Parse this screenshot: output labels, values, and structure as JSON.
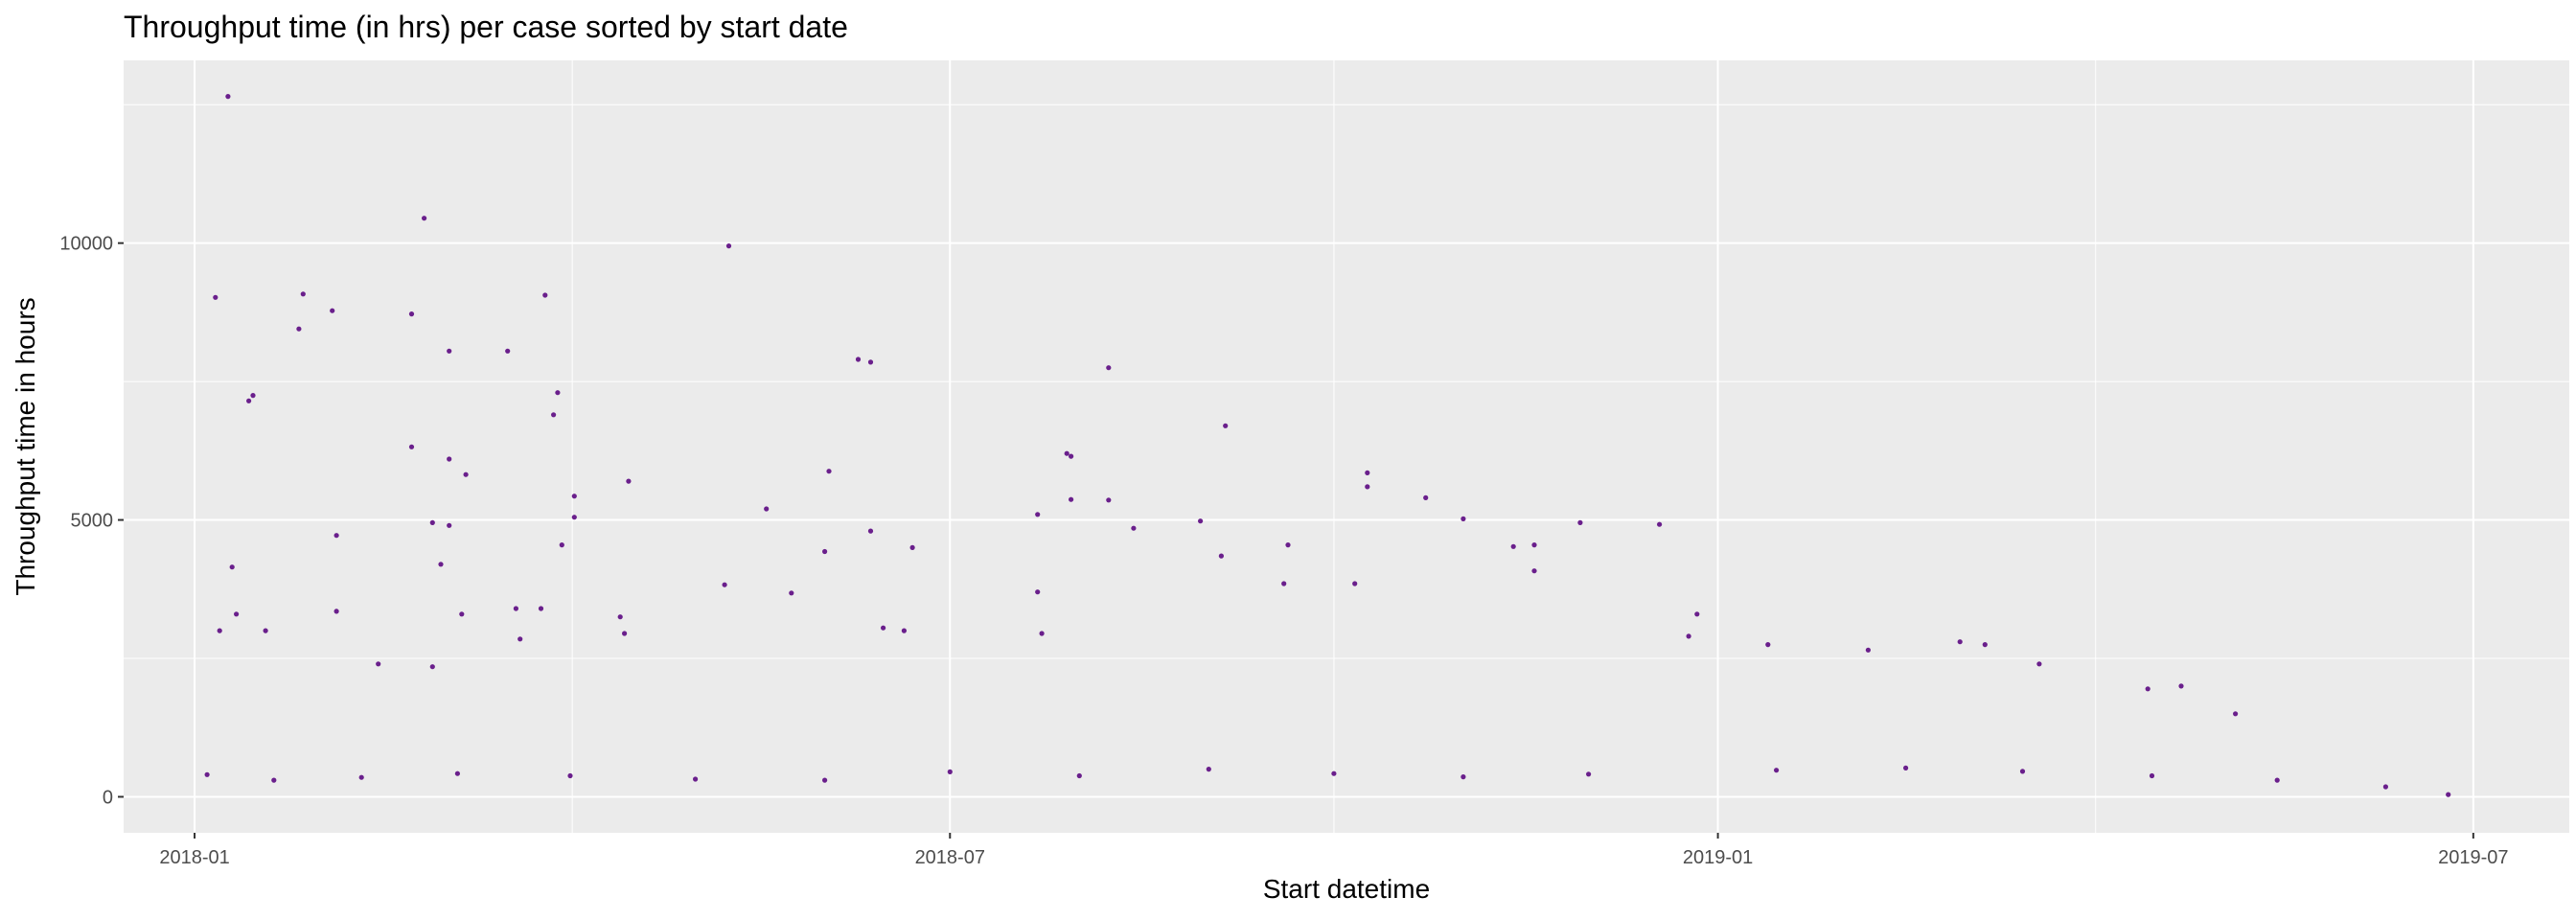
{
  "chart_data": {
    "type": "scatter",
    "title": "Throughput time (in hrs) per case sorted by start date",
    "xlabel": "Start datetime",
    "ylabel": "Throughput time in hours",
    "x_ticks": [
      "2018-01",
      "2018-07",
      "2019-01",
      "2019-07"
    ],
    "y_ticks": [
      "0",
      "5000",
      "10000"
    ],
    "xlim": [
      "2017-12-15",
      "2019-07-24"
    ],
    "ylim": [
      -650,
      13300
    ],
    "grid": true,
    "point_color": "#6A1F8C",
    "panel_background": "#EBEBEB",
    "series": [
      {
        "description": "approximate extracted points (outliers and representative dense cluster)",
        "points": [
          [
            "2018-01-09",
            12650
          ],
          [
            "2018-02-25",
            10450
          ],
          [
            "2018-05-09",
            9950
          ],
          [
            "2018-01-06",
            9020
          ],
          [
            "2018-01-27",
            9080
          ],
          [
            "2018-03-26",
            9060
          ],
          [
            "2018-02-03",
            8780
          ],
          [
            "2018-02-22",
            8720
          ],
          [
            "2018-01-26",
            8450
          ],
          [
            "2018-03-03",
            8050
          ],
          [
            "2018-03-17",
            8050
          ],
          [
            "2018-06-09",
            7900
          ],
          [
            "2018-06-12",
            7850
          ],
          [
            "2018-08-08",
            7750
          ],
          [
            "2018-03-29",
            7300
          ],
          [
            "2018-01-15",
            7250
          ],
          [
            "2018-01-14",
            7150
          ],
          [
            "2018-03-28",
            6900
          ],
          [
            "2018-09-05",
            6700
          ],
          [
            "2018-02-22",
            6320
          ],
          [
            "2018-07-29",
            6200
          ],
          [
            "2018-07-30",
            6150
          ],
          [
            "2018-03-03",
            6100
          ],
          [
            "2018-06-02",
            5880
          ],
          [
            "2018-03-07",
            5820
          ],
          [
            "2018-10-09",
            5850
          ],
          [
            "2018-10-09",
            5600
          ],
          [
            "2018-04-02",
            5430
          ],
          [
            "2018-04-15",
            5700
          ],
          [
            "2018-10-23",
            5400
          ],
          [
            "2018-07-30",
            5370
          ],
          [
            "2018-08-08",
            5360
          ],
          [
            "2018-05-18",
            5200
          ],
          [
            "2018-07-22",
            5100
          ],
          [
            "2018-04-02",
            5050
          ],
          [
            "2018-11-01",
            5020
          ],
          [
            "2018-02-27",
            4950
          ],
          [
            "2018-03-03",
            4900
          ],
          [
            "2018-11-29",
            4950
          ],
          [
            "2018-12-18",
            4920
          ],
          [
            "2018-08-14",
            4850
          ],
          [
            "2018-08-30",
            4980
          ],
          [
            "2018-06-12",
            4800
          ],
          [
            "2018-02-04",
            4720
          ],
          [
            "2018-06-22",
            4500
          ],
          [
            "2018-09-20",
            4550
          ],
          [
            "2018-11-13",
            4520
          ],
          [
            "2018-11-18",
            4550
          ],
          [
            "2018-03-30",
            4550
          ],
          [
            "2018-06-01",
            4430
          ],
          [
            "2018-09-04",
            4350
          ],
          [
            "2018-01-10",
            4150
          ],
          [
            "2018-02-29",
            4200
          ],
          [
            "2018-11-18",
            4080
          ],
          [
            "2018-05-08",
            3830
          ],
          [
            "2018-07-22",
            3700
          ],
          [
            "2018-05-24",
            3680
          ],
          [
            "2018-09-19",
            3850
          ],
          [
            "2018-10-06",
            3850
          ],
          [
            "2018-12-27",
            3300
          ],
          [
            "2018-01-11",
            3300
          ],
          [
            "2018-02-04",
            3350
          ],
          [
            "2018-03-06",
            3300
          ],
          [
            "2018-03-19",
            3400
          ],
          [
            "2018-03-25",
            3400
          ],
          [
            "2018-04-13",
            3250
          ],
          [
            "2018-01-18",
            3000
          ],
          [
            "2018-01-07",
            3000
          ],
          [
            "2018-04-14",
            2950
          ],
          [
            "2018-03-20",
            2850
          ],
          [
            "2018-02-14",
            2400
          ],
          [
            "2018-02-27",
            2350
          ],
          [
            "2018-06-15",
            3050
          ],
          [
            "2018-06-20",
            3000
          ],
          [
            "2018-07-23",
            2950
          ],
          [
            "2018-12-25",
            2900
          ],
          [
            "2019-01-13",
            2750
          ],
          [
            "2019-02-06",
            2650
          ],
          [
            "2019-02-28",
            2800
          ],
          [
            "2019-03-06",
            2750
          ],
          [
            "2019-03-19",
            2400
          ],
          [
            "2019-04-22",
            2000
          ],
          [
            "2019-04-14",
            1950
          ],
          [
            "2019-05-05",
            1500
          ],
          [
            "2018-01-04",
            400
          ],
          [
            "2018-01-20",
            300
          ],
          [
            "2018-02-10",
            350
          ],
          [
            "2018-03-05",
            420
          ],
          [
            "2018-04-01",
            380
          ],
          [
            "2018-05-01",
            320
          ],
          [
            "2018-06-01",
            300
          ],
          [
            "2018-07-01",
            450
          ],
          [
            "2018-08-01",
            380
          ],
          [
            "2018-09-01",
            500
          ],
          [
            "2018-10-01",
            420
          ],
          [
            "2018-11-01",
            360
          ],
          [
            "2018-12-01",
            410
          ],
          [
            "2019-01-15",
            480
          ],
          [
            "2019-02-15",
            520
          ],
          [
            "2019-03-15",
            460
          ],
          [
            "2019-04-15",
            380
          ],
          [
            "2019-05-15",
            300
          ],
          [
            "2019-06-10",
            180
          ],
          [
            "2019-06-25",
            40
          ]
        ]
      }
    ]
  }
}
